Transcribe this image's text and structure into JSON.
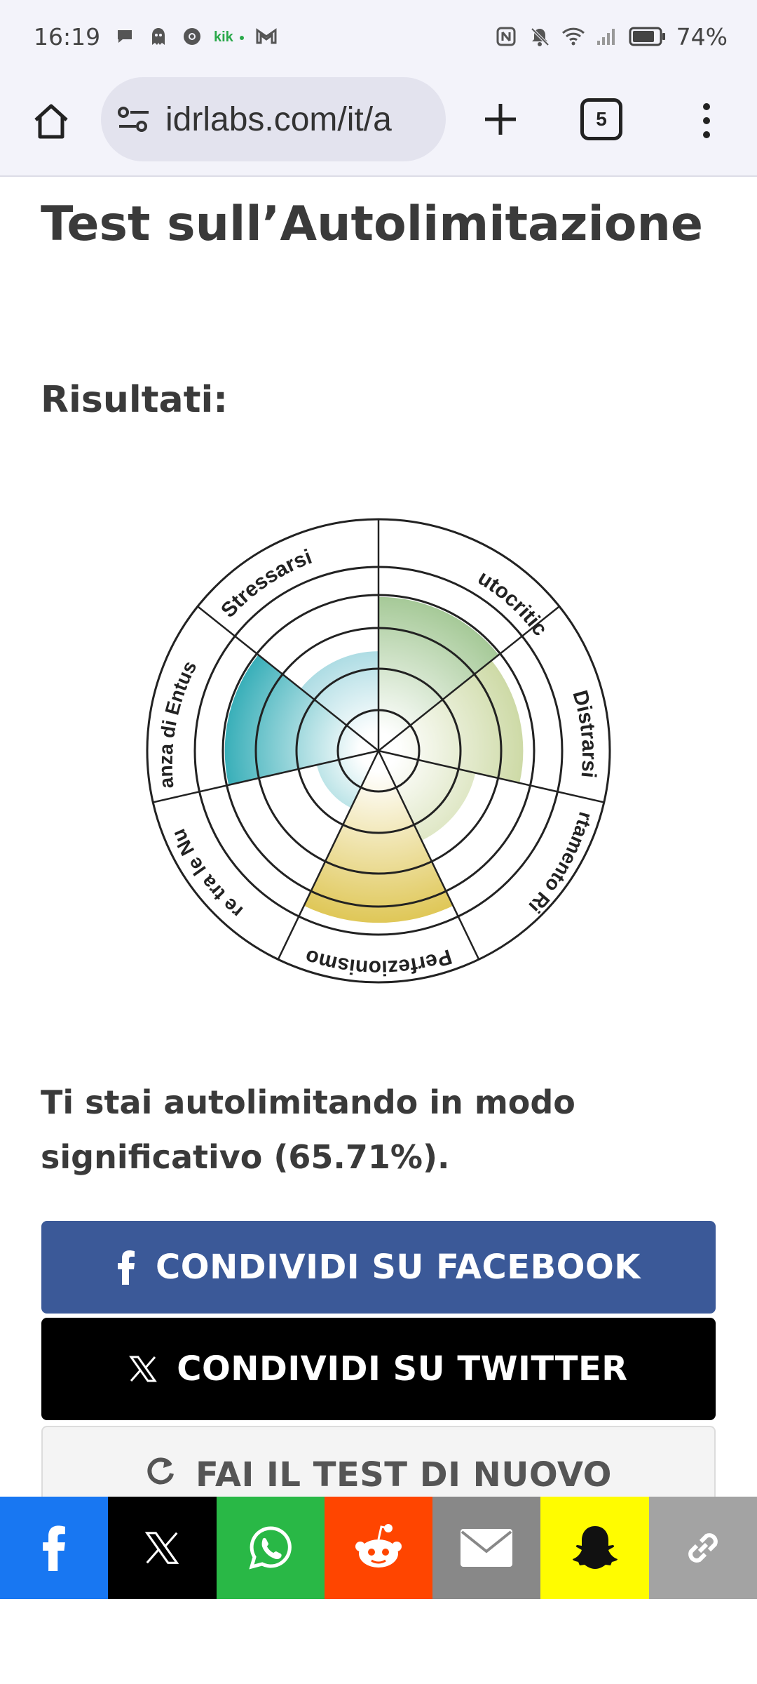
{
  "status_bar": {
    "time": "16:19",
    "battery": "74%",
    "left_icons": [
      "chat-bubble-icon",
      "ghost-icon",
      "chrome-icon",
      "kik-icon",
      "gmail-icon"
    ],
    "right_icons": [
      "nfc-icon",
      "bell-off-icon",
      "wifi-icon",
      "signal-icon",
      "battery-icon"
    ]
  },
  "browser": {
    "url": "idrlabs.com/it/a",
    "tab_count": "5"
  },
  "page": {
    "title": "Test sull’Autolimitazione",
    "results_heading": "Risultati:",
    "result_text": "Ti stai autolimitando in modo significativo (65.71%)."
  },
  "chart_data": {
    "type": "polar-area",
    "rings": 5,
    "categories": [
      "Autocritica",
      "Distrarsi",
      "Comportamento Rischioso",
      "Perfezionismo",
      "Essere tra le Nuvole",
      "Mancanza di Entusiasmo",
      "Stressarsi"
    ],
    "values": [
      85,
      80,
      55,
      95,
      35,
      85,
      55
    ],
    "max": 100,
    "colors": [
      "#9dc38f",
      "#9dc38f",
      "#cdd6a2",
      "#d9bf3c",
      "#2a9ea8",
      "#27a0b2",
      "#7ecbd6"
    ]
  },
  "buttons": {
    "facebook": "CONDIVIDI SU FACEBOOK",
    "twitter": "CONDIVIDI SU TWITTER",
    "retry": "FAI IL TEST DI NUOVO"
  },
  "share_bar": [
    "facebook-icon",
    "x-icon",
    "whatsapp-icon",
    "reddit-icon",
    "email-icon",
    "snapchat-icon",
    "link-icon"
  ]
}
